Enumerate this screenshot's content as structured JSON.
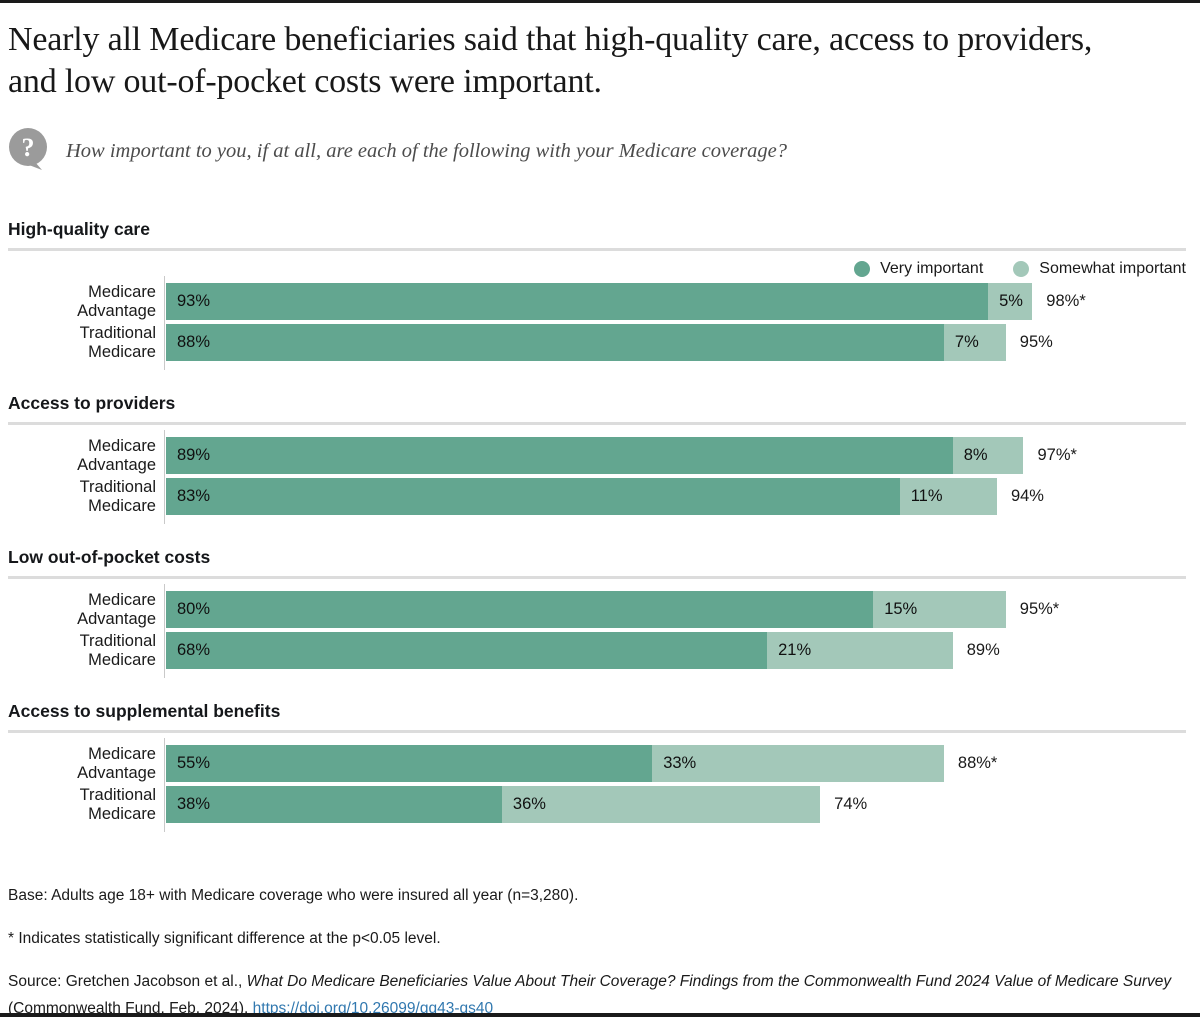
{
  "page": {
    "title": "Nearly all Medicare beneficiaries said that high-quality care, access to providers, and low out-of-pocket costs were important.",
    "question": "How important to you, if at all, are each of the following with your Medicare coverage?"
  },
  "legend": {
    "items": [
      {
        "label": "Very important",
        "color": "#63a690"
      },
      {
        "label": "Somewhat important",
        "color": "#a3c8b9"
      }
    ]
  },
  "chart_data": {
    "type": "bar",
    "orientation": "horizontal",
    "stacked": true,
    "unit": "%",
    "xlim": [
      0,
      100
    ],
    "series_names": [
      "Very important",
      "Somewhat important"
    ],
    "colors": {
      "very_important": "#63a690",
      "somewhat_important": "#a3c8b9"
    },
    "groups": [
      {
        "header": "High-quality care",
        "rows": [
          {
            "label": "Medicare Advantage",
            "very": 93,
            "very_label": "93%",
            "somewhat": 5,
            "somewhat_label": "5%",
            "total": 98,
            "total_label": "98%*"
          },
          {
            "label": "Traditional Medicare",
            "very": 88,
            "very_label": "88%",
            "somewhat": 7,
            "somewhat_label": "7%",
            "total": 95,
            "total_label": "95%"
          }
        ]
      },
      {
        "header": "Access to providers",
        "rows": [
          {
            "label": "Medicare Advantage",
            "very": 89,
            "very_label": "89%",
            "somewhat": 8,
            "somewhat_label": "8%",
            "total": 97,
            "total_label": "97%*"
          },
          {
            "label": "Traditional Medicare",
            "very": 83,
            "very_label": "83%",
            "somewhat": 11,
            "somewhat_label": "11%",
            "total": 94,
            "total_label": "94%"
          }
        ]
      },
      {
        "header": "Low out-of-pocket costs",
        "rows": [
          {
            "label": "Medicare Advantage",
            "very": 80,
            "very_label": "80%",
            "somewhat": 15,
            "somewhat_label": "15%",
            "total": 95,
            "total_label": "95%*"
          },
          {
            "label": "Traditional Medicare",
            "very": 68,
            "very_label": "68%",
            "somewhat": 21,
            "somewhat_label": "21%",
            "total": 89,
            "total_label": "89%"
          }
        ]
      },
      {
        "header": "Access to supplemental benefits",
        "rows": [
          {
            "label": "Medicare Advantage",
            "very": 55,
            "very_label": "55%",
            "somewhat": 33,
            "somewhat_label": "33%",
            "total": 88,
            "total_label": "88%*"
          },
          {
            "label": "Traditional Medicare",
            "very": 38,
            "very_label": "38%",
            "somewhat": 36,
            "somewhat_label": "36%",
            "total": 74,
            "total_label": "74%"
          }
        ]
      }
    ]
  },
  "footnotes": {
    "base": "Base: Adults age 18+ with Medicare coverage who were insured all year (n=3,280).",
    "significance": "* Indicates statistically significant difference at the p<0.05 level.",
    "source_prefix": "Source: Gretchen Jacobson et al., ",
    "source_title_italic": "What Do Medicare Beneficiaries Value About Their Coverage? Findings from the Commonwealth Fund 2024 Value of Medicare Survey",
    "source_suffix": " (Commonwealth Fund, Feb. 2024). ",
    "source_link": "https://doi.org/10.26099/gq43-qs40"
  }
}
